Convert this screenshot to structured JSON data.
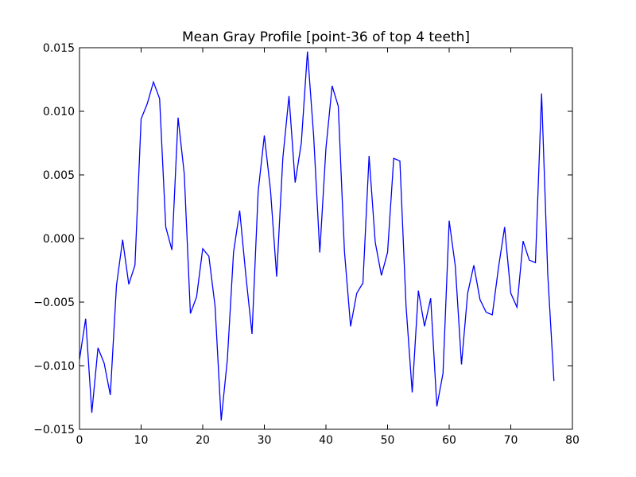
{
  "chart_data": {
    "type": "line",
    "title": "Mean Gray Profile [point-36 of top 4 teeth]",
    "xlabel": "",
    "ylabel": "",
    "xlim": [
      0,
      80
    ],
    "ylim": [
      -0.015,
      0.015
    ],
    "xticks": [
      0,
      10,
      20,
      30,
      40,
      50,
      60,
      70,
      80
    ],
    "xtick_labels": [
      "0",
      "10",
      "20",
      "30",
      "40",
      "50",
      "60",
      "70",
      "80"
    ],
    "yticks": [
      -0.015,
      -0.01,
      -0.005,
      0.0,
      0.005,
      0.01,
      0.015
    ],
    "ytick_labels": [
      "−0.015",
      "−0.010",
      "−0.005",
      "0.000",
      "0.005",
      "0.010",
      "0.015"
    ],
    "grid": false,
    "legend": "none",
    "line_color": "#0000ff",
    "series": [
      {
        "x": [
          0,
          1,
          2,
          3,
          4,
          5,
          6,
          7,
          8,
          9,
          10,
          11,
          12,
          13,
          14,
          15,
          16,
          17,
          18,
          19,
          20,
          21,
          22,
          23,
          24,
          25,
          26,
          27,
          28,
          29,
          30,
          31,
          32,
          33,
          34,
          35,
          36,
          37,
          38,
          39,
          40,
          41,
          42,
          43,
          44,
          45,
          46,
          47,
          48,
          49,
          50,
          51,
          52,
          53,
          54,
          55,
          56,
          57,
          58,
          59,
          60,
          61,
          62,
          63,
          64,
          65,
          66,
          67,
          68,
          69,
          70,
          71,
          72,
          73,
          74,
          75,
          76,
          77
        ],
        "values": [
          -0.0095,
          -0.0063,
          -0.0137,
          -0.0086,
          -0.0098,
          -0.0123,
          -0.0037,
          -0.0001,
          -0.0036,
          -0.0021,
          0.0094,
          0.0106,
          0.0123,
          0.011,
          0.0009,
          -0.0009,
          0.0095,
          0.0051,
          -0.0059,
          -0.0046,
          -0.0008,
          -0.0014,
          -0.0053,
          -0.0143,
          -0.0095,
          -0.0011,
          0.0022,
          -0.0029,
          -0.0075,
          0.0037,
          0.0081,
          0.0038,
          -0.003,
          0.0063,
          0.0112,
          0.0044,
          0.0075,
          0.0147,
          0.0081,
          -0.0011,
          0.0071,
          0.012,
          0.0104,
          -0.001,
          -0.0069,
          -0.0043,
          -0.0035,
          0.0065,
          -0.0003,
          -0.0029,
          -0.0011,
          0.0063,
          0.0061,
          -0.0053,
          -0.0121,
          -0.0041,
          -0.0069,
          -0.0047,
          -0.0132,
          -0.0106,
          0.0014,
          -0.0022,
          -0.0099,
          -0.0043,
          -0.0021,
          -0.0048,
          -0.0058,
          -0.006,
          -0.0023,
          0.0009,
          -0.0043,
          -0.0054,
          -0.0002,
          -0.0017,
          -0.0019,
          0.0114,
          -0.0028,
          -0.0112
        ]
      }
    ]
  }
}
